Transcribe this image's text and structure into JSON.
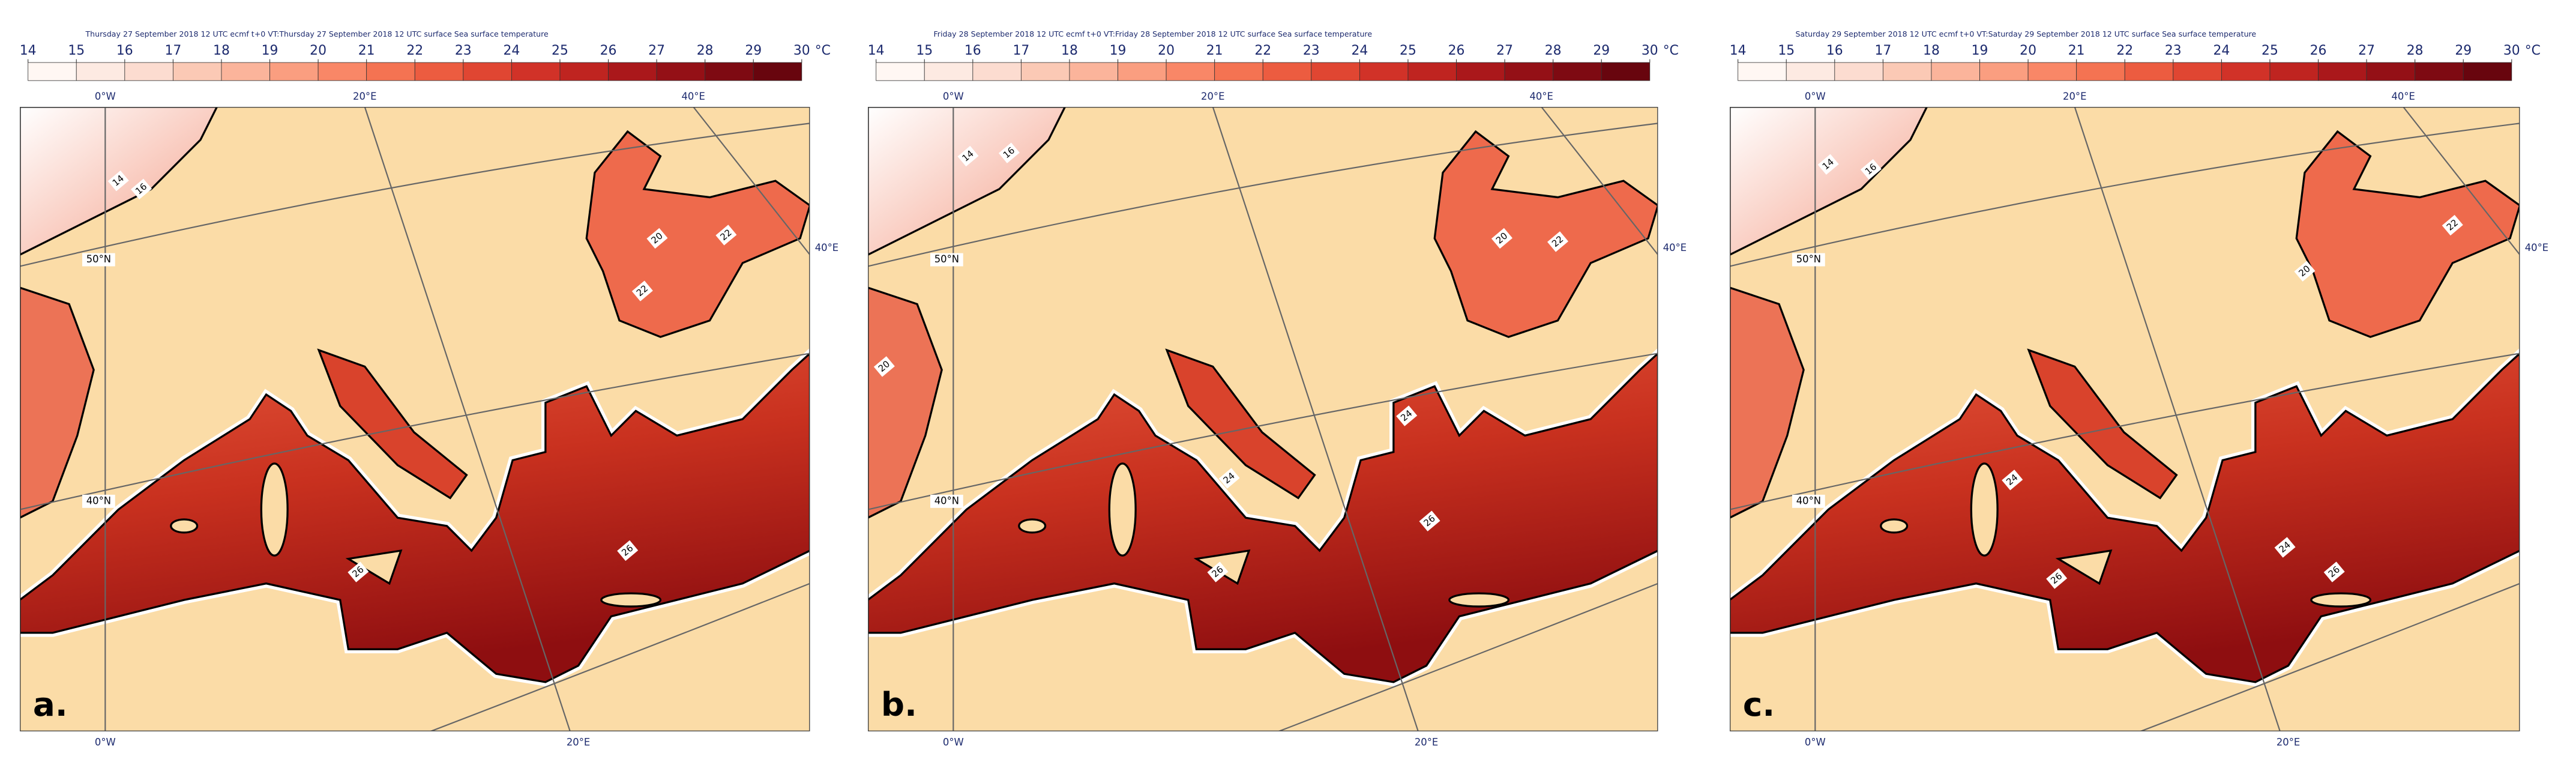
{
  "panels": [
    {
      "title": "Thursday 27 September 2018 12 UTC ecmf t+0 VT:Thursday 27 September 2018 12 UTC surface  Sea surface temperature",
      "letter": "a.",
      "contour_labels": [
        "14",
        "16",
        "20",
        "22",
        "22",
        "26",
        "26"
      ]
    },
    {
      "title": "Friday 28 September 2018 12 UTC ecmf t+0 VT:Friday 28 September 2018 12 UTC surface  Sea surface temperature",
      "letter": "b.",
      "contour_labels": [
        "14",
        "16",
        "20",
        "20",
        "22",
        "24",
        "24",
        "26",
        "26"
      ]
    },
    {
      "title": "Saturday 29 September 2018 12 UTC ecmf t+0 VT:Saturday 29 September 2018 12 UTC surface  Sea surface temperature",
      "letter": "c.",
      "contour_labels": [
        "14",
        "16",
        "20",
        "22",
        "24",
        "24",
        "26",
        "26"
      ]
    }
  ],
  "colorbar": {
    "ticks": [
      14,
      15,
      16,
      17,
      18,
      19,
      20,
      21,
      22,
      23,
      24,
      25,
      26,
      27,
      28,
      29,
      30
    ],
    "unit": "°C",
    "colors": [
      "#fff7f3",
      "#fdeae2",
      "#fcdcd0",
      "#fbc9b5",
      "#fbb49b",
      "#fa9e80",
      "#f98767",
      "#f47352",
      "#ec5c40",
      "#e04632",
      "#d13228",
      "#bf2420",
      "#aa181b",
      "#941016",
      "#7e0a12",
      "#68050e"
    ]
  },
  "map_labels": {
    "top": [
      "0°W",
      "20°E",
      "40°E"
    ],
    "right": "40°E",
    "lat": [
      "50°N",
      "40°N"
    ],
    "bottom": [
      "0°W",
      "20°E"
    ]
  }
}
